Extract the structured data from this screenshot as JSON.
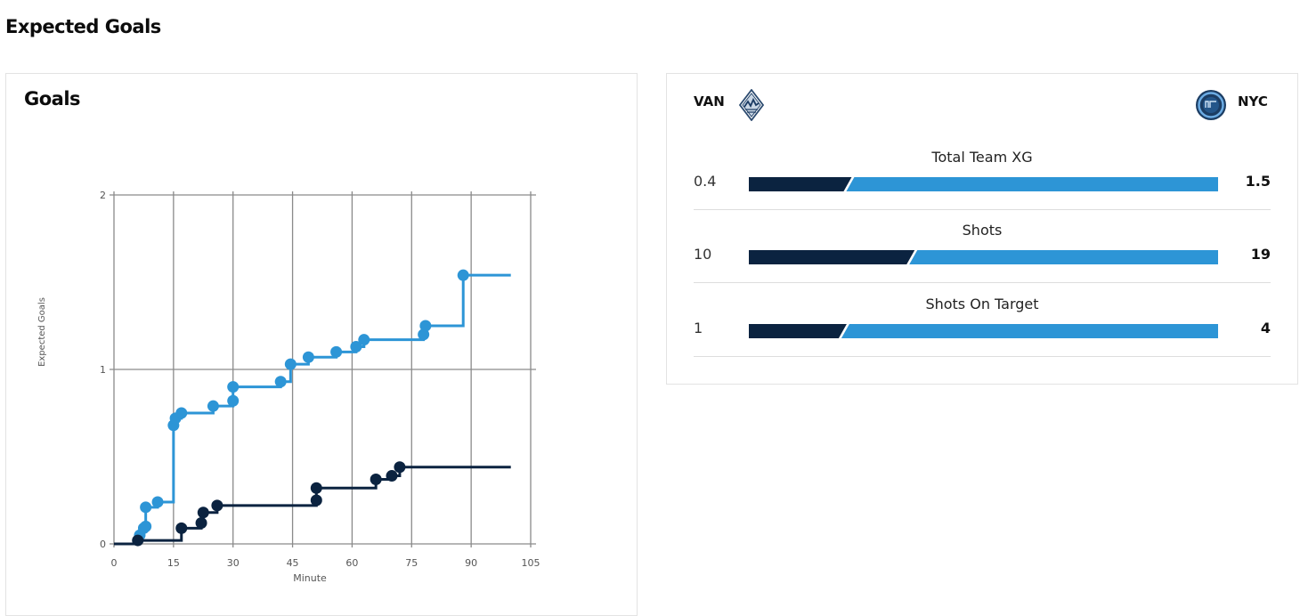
{
  "page": {
    "title": "Expected Goals"
  },
  "chart_card": {
    "title": "Goals"
  },
  "colors": {
    "home": "#0b2340",
    "away": "#2d95d6",
    "grid": "#8a8a8a"
  },
  "teams": {
    "home": {
      "abbr": "VAN",
      "crest_icon": "whitecaps-crest-icon"
    },
    "away": {
      "abbr": "NYC",
      "crest_icon": "nycfc-crest-icon"
    }
  },
  "stats": [
    {
      "label": "Total Team XG",
      "home": "0.4",
      "away": "1.5",
      "home_value": 0.4,
      "away_value": 1.5
    },
    {
      "label": "Shots",
      "home": "10",
      "away": "19",
      "home_value": 10,
      "away_value": 19
    },
    {
      "label": "Shots On Target",
      "home": "1",
      "away": "4",
      "home_value": 1,
      "away_value": 4
    }
  ],
  "chart_data": {
    "type": "line",
    "step": true,
    "xlabel": "Minute",
    "ylabel": "Expected Goals",
    "xlim": [
      0,
      105
    ],
    "ylim": [
      0,
      2
    ],
    "xticks": [
      0,
      15,
      30,
      45,
      60,
      75,
      90,
      105
    ],
    "yticks": [
      0,
      1,
      2
    ],
    "grid": true,
    "series": [
      {
        "team": "away",
        "color": "#2d95d6",
        "points": [
          [
            6.5,
            0.05
          ],
          [
            7.5,
            0.09
          ],
          [
            8,
            0.1
          ],
          [
            8,
            0.21
          ],
          [
            11,
            0.24
          ],
          [
            15,
            0.68
          ],
          [
            15.5,
            0.72
          ],
          [
            17,
            0.75
          ],
          [
            25,
            0.79
          ],
          [
            30,
            0.82
          ],
          [
            30,
            0.9
          ],
          [
            42,
            0.93
          ],
          [
            44.5,
            1.03
          ],
          [
            49,
            1.07
          ],
          [
            56,
            1.1
          ],
          [
            61,
            1.13
          ],
          [
            63,
            1.17
          ],
          [
            78,
            1.2
          ],
          [
            78.5,
            1.25
          ],
          [
            88,
            1.54
          ]
        ],
        "end": [
          100,
          1.54
        ]
      },
      {
        "team": "home",
        "color": "#0b2340",
        "points": [
          [
            6,
            0.02
          ],
          [
            17,
            0.09
          ],
          [
            22,
            0.12
          ],
          [
            22.5,
            0.18
          ],
          [
            26,
            0.22
          ],
          [
            51,
            0.25
          ],
          [
            51,
            0.32
          ],
          [
            66,
            0.37
          ],
          [
            70,
            0.39
          ],
          [
            72,
            0.44
          ]
        ],
        "end": [
          100,
          0.44
        ]
      }
    ]
  }
}
